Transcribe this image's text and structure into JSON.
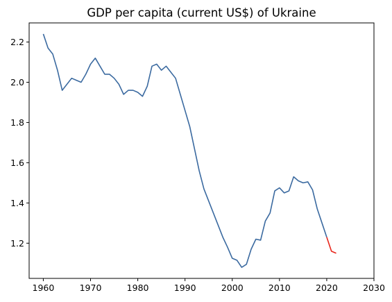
{
  "chart_data": {
    "type": "line",
    "title": "GDP per capita (current US$) of Ukraine",
    "xlabel": "",
    "ylabel": "",
    "xlim": [
      1957,
      2030
    ],
    "ylim": [
      1.025,
      2.295
    ],
    "grid": false,
    "x_ticks": [
      1960,
      1970,
      1980,
      1990,
      2000,
      2010,
      2020,
      2030
    ],
    "y_ticks": [
      1.2,
      1.4,
      1.6,
      1.8,
      2.0,
      2.2
    ],
    "series": [
      {
        "color": "#3b6aa0",
        "x": [
          1960,
          1961,
          1962,
          1963,
          1964,
          1965,
          1966,
          1967,
          1968,
          1969,
          1970,
          1971,
          1972,
          1973,
          1974,
          1975,
          1976,
          1977,
          1978,
          1979,
          1980,
          1981,
          1982,
          1983,
          1984,
          1985,
          1986,
          1987,
          1988,
          1989,
          1990,
          1991,
          1992,
          1993,
          1994,
          1995,
          1996,
          1997,
          1998,
          1999,
          2000,
          2001,
          2002,
          2003,
          2004,
          2005,
          2006,
          2007,
          2008,
          2009,
          2010,
          2011,
          2012,
          2013,
          2014,
          2015,
          2016,
          2017,
          2018,
          2019,
          2020
        ],
        "values": [
          2.24,
          2.17,
          2.14,
          2.06,
          1.96,
          1.99,
          2.02,
          2.01,
          2.0,
          2.04,
          2.09,
          2.12,
          2.08,
          2.04,
          2.04,
          2.02,
          1.99,
          1.94,
          1.96,
          1.96,
          1.95,
          1.93,
          1.98,
          2.08,
          2.09,
          2.06,
          2.08,
          2.05,
          2.02,
          1.94,
          1.86,
          1.78,
          1.67,
          1.56,
          1.47,
          1.41,
          1.35,
          1.29,
          1.23,
          1.18,
          1.125,
          1.115,
          1.08,
          1.095,
          1.17,
          1.22,
          1.215,
          1.31,
          1.35,
          1.46,
          1.475,
          1.45,
          1.46,
          1.53,
          1.51,
          1.5,
          1.505,
          1.465,
          1.37,
          1.3,
          1.23
        ]
      },
      {
        "color": "#e8261c",
        "x": [
          2020,
          2021,
          2022
        ],
        "values": [
          1.23,
          1.16,
          1.15
        ]
      }
    ]
  }
}
